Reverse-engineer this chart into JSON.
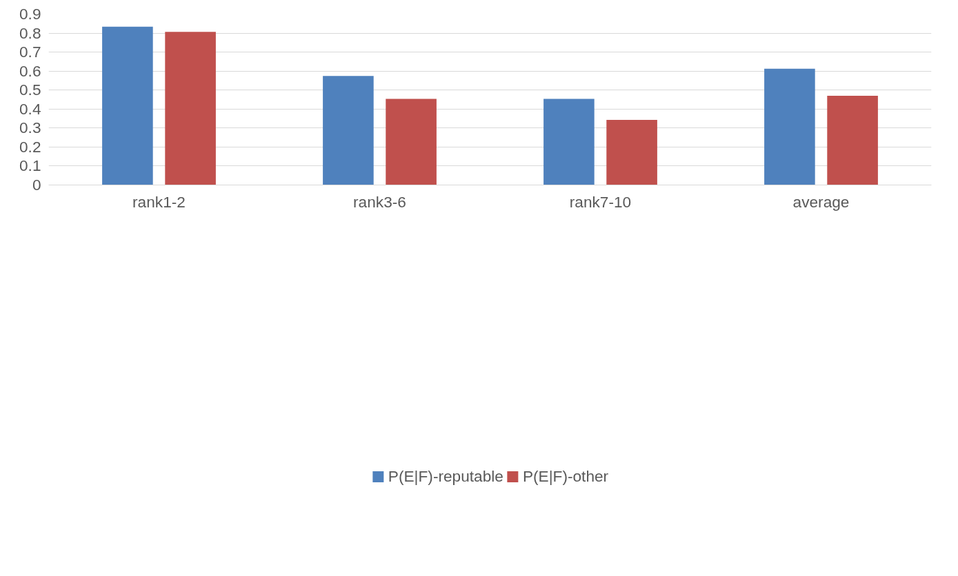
{
  "chart_data": {
    "type": "bar",
    "categories": [
      "rank1-2",
      "rank3-6",
      "rank7-10",
      "average"
    ],
    "series": [
      {
        "name": "P(E|F)-reputable",
        "color": "#4f81bd",
        "values": [
          0.834,
          0.574,
          0.454,
          0.612
        ]
      },
      {
        "name": "P(E|F)-other",
        "color": "#c0504d",
        "values": [
          0.807,
          0.454,
          0.343,
          0.47
        ]
      }
    ],
    "ylim": [
      0,
      0.9
    ],
    "yticks": [
      0,
      0.1,
      0.2,
      0.3,
      0.4,
      0.5,
      0.6,
      0.7,
      0.8,
      0.9
    ],
    "grid": "y",
    "legend": "bottom"
  }
}
